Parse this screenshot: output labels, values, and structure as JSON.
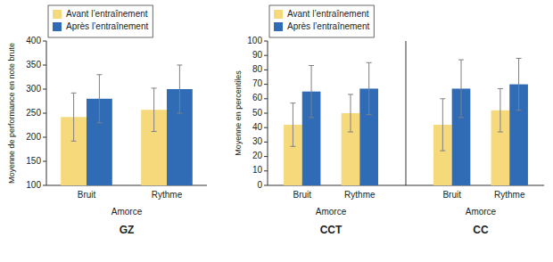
{
  "chart_data": [
    {
      "type": "bar",
      "title": "GZ",
      "xlabel": "Amorce",
      "ylabel": "Moyenne de performance en note brute",
      "categories": [
        "Bruit",
        "Rythme"
      ],
      "series": [
        {
          "name": "Avant l’entraînement",
          "color": "#F5D97B",
          "values": [
            242,
            257
          ],
          "errors": [
            50,
            45
          ]
        },
        {
          "name": "Après l’entraînement",
          "color": "#2F6CB5",
          "values": [
            280,
            300
          ],
          "errors": [
            50,
            50
          ]
        }
      ],
      "ylim": [
        100,
        400
      ],
      "yticks": [
        100,
        150,
        200,
        250,
        300,
        350,
        400
      ],
      "grid": false,
      "legend": "upper left"
    },
    {
      "type": "bar",
      "ylabel": "Moyenne en percentiles",
      "series": [
        {
          "name": "Avant l’entraînement",
          "color": "#F5D97B"
        },
        {
          "name": "Après l’entraînement",
          "color": "#2F6CB5"
        }
      ],
      "groups": [
        {
          "title": "CCT",
          "xlabel": "Amorce",
          "categories": [
            "Bruit",
            "Rythme"
          ],
          "series": [
            {
              "values": [
                42,
                50
              ],
              "errors": [
                15,
                13
              ]
            },
            {
              "values": [
                65,
                67
              ],
              "errors": [
                18,
                18
              ]
            }
          ]
        },
        {
          "title": "CC",
          "xlabel": "Amorce",
          "categories": [
            "Bruit",
            "Rythme"
          ],
          "series": [
            {
              "values": [
                42,
                52
              ],
              "errors": [
                18,
                15
              ]
            },
            {
              "values": [
                67,
                70
              ],
              "errors": [
                20,
                18
              ]
            }
          ]
        }
      ],
      "ylim": [
        0,
        100
      ],
      "yticks": [
        0,
        10,
        20,
        30,
        40,
        50,
        60,
        70,
        80,
        90,
        100
      ],
      "grid": false,
      "legend": "upper left"
    }
  ]
}
